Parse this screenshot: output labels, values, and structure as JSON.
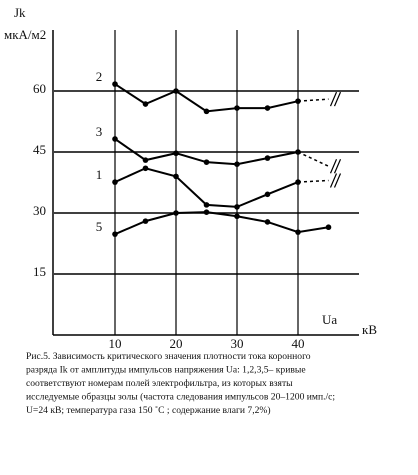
{
  "chart_data": {
    "type": "line",
    "y_label": "Jk",
    "y_unit": "мкА/м2",
    "x_label": "Ua",
    "x_unit": "кВ",
    "x": [
      10,
      15,
      20,
      25,
      30,
      35,
      40,
      45
    ],
    "series": [
      {
        "name": "2",
        "color": "#000000",
        "values": [
          61.7,
          56.8,
          60,
          55,
          55.8,
          55.8,
          57.5,
          58
        ],
        "dashed_last_segment": true
      },
      {
        "name": "3",
        "color": "#000000",
        "values": [
          48.2,
          43,
          44.7,
          42.5,
          42,
          43.5,
          45,
          41.5
        ],
        "dashed_last_segment": true
      },
      {
        "name": "1",
        "color": "#000000",
        "values": [
          37.6,
          41,
          39,
          32,
          31.5,
          34.6,
          37.6,
          38
        ],
        "dashed_last_segment": true
      },
      {
        "name": "5",
        "color": "#000000",
        "values": [
          24.8,
          28,
          30,
          30.2,
          29.2,
          27.8,
          25.3,
          26.5
        ],
        "dashed_last_segment": false
      }
    ],
    "xlim": [
      0,
      50
    ],
    "ylim": [
      0,
      75
    ],
    "xticks": [
      10,
      20,
      30,
      40
    ],
    "yticks": [
      15,
      30,
      45,
      60
    ],
    "grid": true
  },
  "caption": [
    "Рис.5. Зависимость критического  значения плотности тока коронного",
    " разряда Ik от амплитуды импульсов напряжения  Ua: 1,2,3,5– кривые",
    "соответствуют номерам полей электрофильтра,  из которых взяты",
    "исследуемые образцы золы (частота следования  импульсов 20–1200 имп./с;",
    "U=24 кВ;  температура газа 150 ˚С ;  содержание влаги 7,2%)"
  ]
}
